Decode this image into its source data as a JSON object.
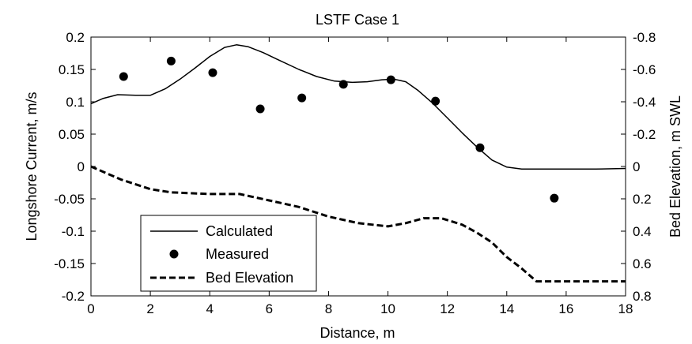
{
  "chart_data": {
    "type": "line",
    "title": "LSTF Case 1",
    "xlabel": "Distance, m",
    "ylabel": "Longshore Current, m/s",
    "y2label": "Bed Elevation, m SWL",
    "xlim": [
      0,
      18
    ],
    "ylim": [
      -0.2,
      0.2
    ],
    "y2lim": [
      0.8,
      -0.8
    ],
    "xticks": [
      "0",
      "2",
      "4",
      "6",
      "8",
      "10",
      "12",
      "14",
      "16",
      "18"
    ],
    "yticks": [
      "0.2",
      "0.15",
      "0.1",
      "0.05",
      "0",
      "-0.05",
      "-0.1",
      "-0.15",
      "-0.2"
    ],
    "y2ticks": [
      "-0.8",
      "-0.6",
      "-0.4",
      "-0.2",
      "0",
      "0.2",
      "0.4",
      "0.6",
      "0.8"
    ],
    "grid": false,
    "legend_position": "bottom-left",
    "series": [
      {
        "name": "Calculated",
        "style": "solid",
        "color": "#000000",
        "axis": "left",
        "x": [
          0,
          0.4,
          0.9,
          1.5,
          2.0,
          2.5,
          3.0,
          3.5,
          4.0,
          4.5,
          4.9,
          5.3,
          5.8,
          6.3,
          7.0,
          7.6,
          8.2,
          8.8,
          9.3,
          9.8,
          10.2,
          10.6,
          11.0,
          11.5,
          12.0,
          12.5,
          13.0,
          13.5,
          14.0,
          14.5,
          15.0,
          16.0,
          17.0,
          18.0
        ],
        "y": [
          0.097,
          0.105,
          0.111,
          0.11,
          0.11,
          0.12,
          0.135,
          0.152,
          0.17,
          0.184,
          0.188,
          0.185,
          0.176,
          0.165,
          0.15,
          0.139,
          0.132,
          0.13,
          0.131,
          0.134,
          0.135,
          0.131,
          0.118,
          0.098,
          0.075,
          0.052,
          0.03,
          0.01,
          -0.001,
          -0.004,
          -0.004,
          -0.004,
          -0.004,
          -0.003
        ]
      },
      {
        "name": "Measured",
        "style": "markers",
        "color": "#000000",
        "axis": "left",
        "x": [
          1.1,
          2.7,
          4.1,
          5.7,
          7.1,
          8.5,
          10.1,
          11.6,
          13.1,
          15.6
        ],
        "y": [
          0.139,
          0.163,
          0.145,
          0.089,
          0.106,
          0.127,
          0.134,
          0.101,
          0.029,
          -0.049
        ]
      },
      {
        "name": "Bed Elevation",
        "style": "dashed",
        "color": "#000000",
        "axis": "right",
        "x": [
          0,
          1.0,
          2.0,
          2.7,
          4.0,
          5.0,
          6.0,
          7.0,
          8.0,
          9.0,
          10.0,
          10.6,
          11.2,
          11.8,
          12.5,
          13.0,
          13.5,
          14.0,
          14.5,
          15.0,
          16.0,
          17.0,
          18.0
        ],
        "y": [
          0.0,
          0.08,
          0.14,
          0.16,
          0.17,
          0.17,
          0.21,
          0.25,
          0.31,
          0.35,
          0.37,
          0.35,
          0.32,
          0.32,
          0.36,
          0.41,
          0.47,
          0.56,
          0.63,
          0.71,
          0.71,
          0.71,
          0.71
        ]
      }
    ]
  }
}
